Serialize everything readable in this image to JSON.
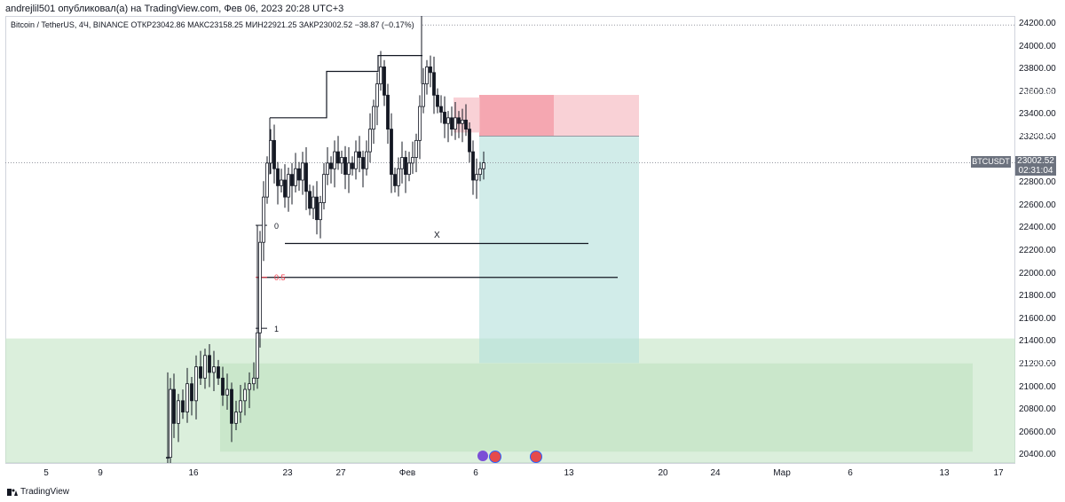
{
  "publish_line": "andrejlil501 опубликовал(а) на TradingView.com, Фев 06, 2023 20:28 UTC+3",
  "symbol_line": "Bitcoin / TetherUS, 4Ч, BINANCE  ОТКР23042.86  МАКС23158.25  МИН22921.25  ЗАКР23002.52  −38.87 (−0.17%)",
  "price_scale": {
    "ticks": [
      "24200.00",
      "24000.00",
      "23800.00",
      "23600.00",
      "23400.00",
      "23200.00",
      "23000.00",
      "22800.00",
      "22600.00",
      "22400.00",
      "22200.00",
      "22000.00",
      "21800.00",
      "21600.00",
      "21400.00",
      "21200.00",
      "21000.00",
      "20800.00",
      "20600.00",
      "20400.00"
    ],
    "badges": {
      "stop": {
        "value": "23602.38",
        "color": "#f23645"
      },
      "entry": {
        "value": "23238.34",
        "color": "#6c727e"
      },
      "target": {
        "value": "21233.55",
        "color": "#089981"
      }
    },
    "current": {
      "symbol": "BTCUSDT",
      "price": "23002.52",
      "countdown": "02:31:04"
    }
  },
  "time_axis": [
    "5",
    "9",
    "16",
    "23",
    "27",
    "Фев",
    "6",
    "13",
    "20",
    "24",
    "Мар",
    "6",
    "13",
    "17"
  ],
  "fib_labels": {
    "level_0": "0",
    "level_05": "0.5",
    "level_1": "1"
  },
  "annotation_x": "X",
  "footer": "TradingView",
  "colors": {
    "up": "#131722",
    "stop_zone": "#f7c2c8",
    "stop_zone_dark": "#f28b97",
    "target_zone": "#b2dfdb",
    "demand_zone": "#c8e6c9",
    "fib_05": "#f23645"
  },
  "chart_data": {
    "type": "candlestick",
    "symbol": "BTCUSDT",
    "timeframe": "4h",
    "ylim": [
      20350,
      24300
    ],
    "position": {
      "side": "short",
      "stop": 23602.38,
      "entry": 23238.34,
      "target": 21233.55
    },
    "candles_approx": [
      {
        "t": "Jan 13",
        "o": 20900,
        "h": 21250,
        "l": 20400,
        "c": 21000
      },
      {
        "t": "Jan 14",
        "o": 21000,
        "h": 21300,
        "l": 20700,
        "c": 20800
      },
      {
        "t": "Jan 15",
        "o": 20800,
        "h": 21400,
        "l": 20700,
        "c": 21200
      },
      {
        "t": "Jan 16",
        "o": 21200,
        "h": 21450,
        "l": 20900,
        "c": 21100
      },
      {
        "t": "Jan 17",
        "o": 21100,
        "h": 21350,
        "l": 20800,
        "c": 21250
      },
      {
        "t": "Jan 18",
        "o": 21250,
        "h": 21500,
        "l": 20500,
        "c": 20700
      },
      {
        "t": "Jan 19",
        "o": 20700,
        "h": 21100,
        "l": 20450,
        "c": 21000
      },
      {
        "t": "Jan 20",
        "o": 21000,
        "h": 22500,
        "l": 20900,
        "c": 22400
      },
      {
        "t": "Jan 21",
        "o": 22400,
        "h": 23350,
        "l": 22300,
        "c": 23000
      },
      {
        "t": "Jan 22",
        "o": 23000,
        "h": 23150,
        "l": 22700,
        "c": 22850
      },
      {
        "t": "Jan 23",
        "o": 22850,
        "h": 23050,
        "l": 22550,
        "c": 22900
      },
      {
        "t": "Jan 24",
        "o": 22900,
        "h": 23100,
        "l": 22350,
        "c": 22600
      },
      {
        "t": "Jan 25",
        "o": 22600,
        "h": 23150,
        "l": 22400,
        "c": 23000
      },
      {
        "t": "Jan 26",
        "o": 23000,
        "h": 23300,
        "l": 22800,
        "c": 23050
      },
      {
        "t": "Jan 27",
        "o": 23050,
        "h": 23200,
        "l": 22850,
        "c": 23100
      },
      {
        "t": "Jan 28",
        "o": 23100,
        "h": 23500,
        "l": 22950,
        "c": 23400
      },
      {
        "t": "Jan 29",
        "o": 23400,
        "h": 23900,
        "l": 23200,
        "c": 23800
      },
      {
        "t": "Jan 30",
        "o": 23800,
        "h": 23850,
        "l": 22600,
        "c": 22800
      },
      {
        "t": "Jan 31",
        "o": 22800,
        "h": 23200,
        "l": 22700,
        "c": 23100
      },
      {
        "t": "Feb 1",
        "o": 23100,
        "h": 24250,
        "l": 22900,
        "c": 23700
      },
      {
        "t": "Feb 2",
        "o": 23700,
        "h": 24200,
        "l": 23400,
        "c": 23500
      },
      {
        "t": "Feb 3",
        "o": 23500,
        "h": 23600,
        "l": 23200,
        "c": 23400
      },
      {
        "t": "Feb 4",
        "o": 23400,
        "h": 23500,
        "l": 23200,
        "c": 23300
      },
      {
        "t": "Feb 5",
        "o": 23300,
        "h": 23400,
        "l": 22750,
        "c": 22900
      },
      {
        "t": "Feb 6",
        "o": 22900,
        "h": 23160,
        "l": 22700,
        "c": 23002.52
      }
    ]
  }
}
